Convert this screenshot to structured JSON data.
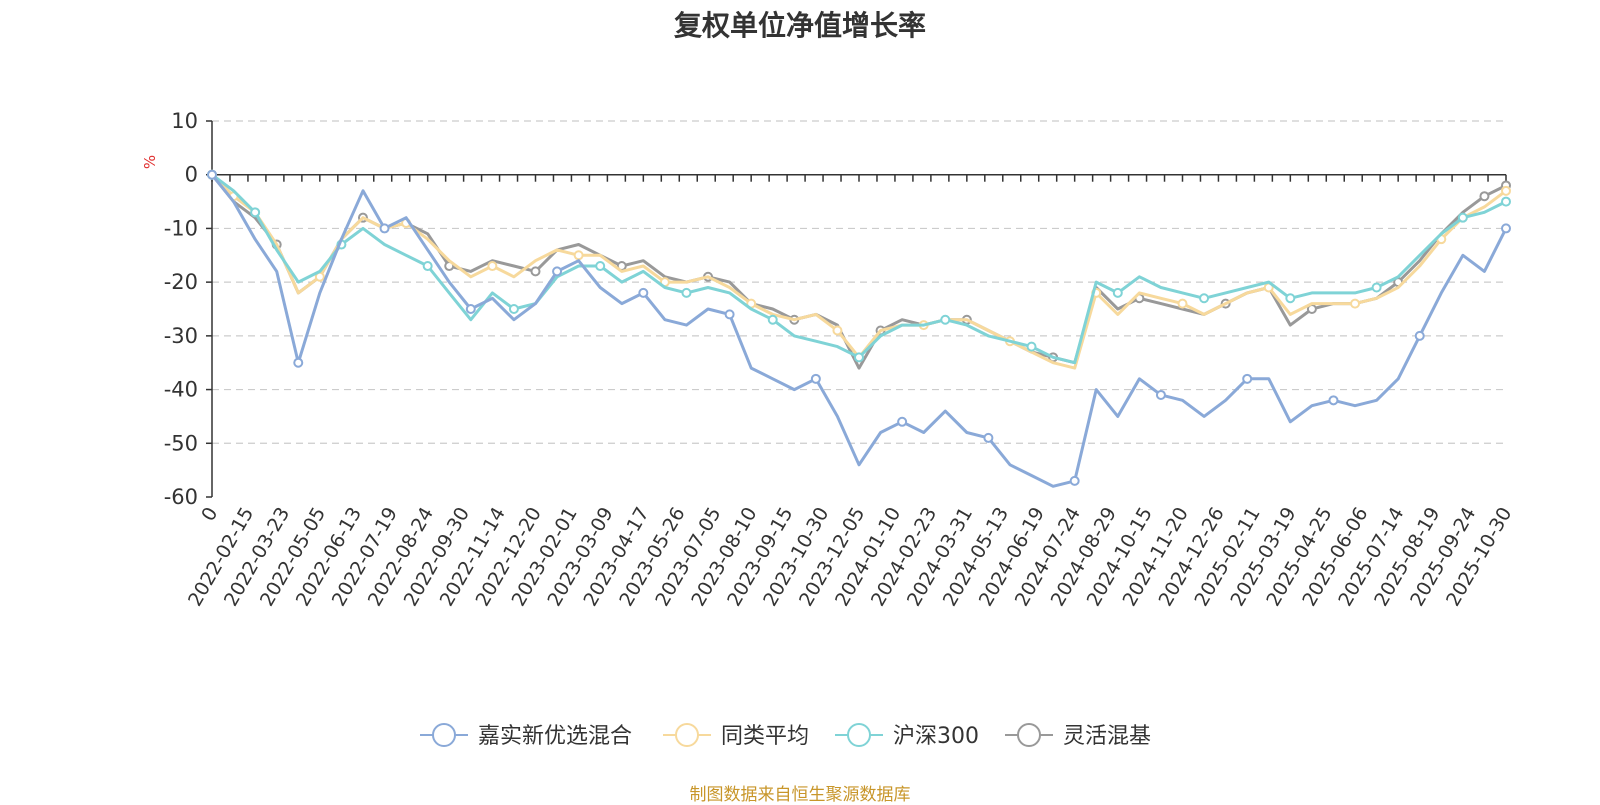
{
  "title": "复权单位净值增长率",
  "source_note": "制图数据来自恒生聚源数据库",
  "colors": {
    "series": [
      "#8aa9d8",
      "#f7d99c",
      "#7fd3d6",
      "#999999"
    ],
    "axis": "#333333",
    "grid": "#cccccc",
    "unit": "#e03030",
    "source": "#c8962a"
  },
  "chart_data": {
    "type": "line",
    "title": "复权单位净值增长率",
    "ylabel": "%",
    "ylim": [
      -60,
      10
    ],
    "yticks": [
      10,
      0,
      -10,
      -20,
      -30,
      -40,
      -50,
      -60
    ],
    "x_labels": [
      "0",
      "2022-02-15",
      "2022-03-23",
      "2022-05-05",
      "2022-06-13",
      "2022-07-19",
      "2022-08-24",
      "2022-09-30",
      "2022-11-14",
      "2022-12-20",
      "2023-02-01",
      "2023-03-09",
      "2023-04-17",
      "2023-05-26",
      "2023-07-05",
      "2023-08-10",
      "2023-09-15",
      "2023-10-30",
      "2023-12-05",
      "2024-01-10",
      "2024-02-23",
      "2024-03-31",
      "2024-05-13",
      "2024-06-19",
      "2024-07-24",
      "2024-08-29",
      "2024-10-15",
      "2024-11-20",
      "2024-12-26",
      "2025-02-11",
      "2025-03-19",
      "2025-04-25",
      "2025-06-06",
      "2025-07-14",
      "2025-08-19",
      "2025-09-24",
      "2025-10-30"
    ],
    "series": [
      {
        "name": "嘉实新优选混合",
        "values": [
          0,
          -5,
          -12,
          -18,
          -35,
          -22,
          -12,
          -3,
          -10,
          -8,
          -14,
          -20,
          -25,
          -23,
          -27,
          -24,
          -18,
          -16,
          -21,
          -24,
          -22,
          -27,
          -28,
          -25,
          -26,
          -36,
          -38,
          -40,
          -38,
          -45,
          -54,
          -48,
          -46,
          -48,
          -44,
          -48,
          -49,
          -54,
          -56,
          -58,
          -57,
          -40,
          -45,
          -38,
          -41,
          -42,
          -45,
          -42,
          -38,
          -38,
          -46,
          -43,
          -42,
          -43,
          -42,
          -38,
          -30,
          -22,
          -15,
          -18,
          -10
        ]
      },
      {
        "name": "同类平均",
        "values": [
          0,
          -4,
          -7,
          -13,
          -22,
          -19,
          -12,
          -8,
          -10,
          -9,
          -12,
          -16,
          -19,
          -17,
          -19,
          -16,
          -14,
          -15,
          -15,
          -18,
          -17,
          -20,
          -20,
          -19,
          -21,
          -24,
          -26,
          -27,
          -26,
          -29,
          -34,
          -29,
          -28,
          -28,
          -27,
          -27,
          -29,
          -31,
          -33,
          -35,
          -36,
          -22,
          -26,
          -22,
          -23,
          -24,
          -26,
          -24,
          -22,
          -21,
          -26,
          -24,
          -24,
          -24,
          -23,
          -21,
          -17,
          -12,
          -8,
          -6,
          -3
        ]
      },
      {
        "name": "沪深300",
        "values": [
          0,
          -3,
          -7,
          -14,
          -20,
          -18,
          -13,
          -10,
          -13,
          -15,
          -17,
          -22,
          -27,
          -22,
          -25,
          -24,
          -19,
          -17,
          -17,
          -20,
          -18,
          -21,
          -22,
          -21,
          -22,
          -25,
          -27,
          -30,
          -31,
          -32,
          -34,
          -30,
          -28,
          -28,
          -27,
          -28,
          -30,
          -31,
          -32,
          -34,
          -35,
          -20,
          -22,
          -19,
          -21,
          -22,
          -23,
          -22,
          -21,
          -20,
          -23,
          -22,
          -22,
          -22,
          -21,
          -19,
          -15,
          -11,
          -8,
          -7,
          -5
        ]
      },
      {
        "name": "灵活混基",
        "values": [
          0,
          -5,
          -8,
          -13,
          -22,
          -19,
          -12,
          -8,
          -10,
          -9,
          -11,
          -17,
          -18,
          -16,
          -17,
          -18,
          -14,
          -13,
          -15,
          -17,
          -16,
          -19,
          -20,
          -19,
          -20,
          -24,
          -25,
          -27,
          -26,
          -28,
          -36,
          -29,
          -27,
          -28,
          -27,
          -27,
          -29,
          -31,
          -33,
          -34,
          -35,
          -21,
          -25,
          -23,
          -24,
          -25,
          -26,
          -24,
          -22,
          -21,
          -28,
          -25,
          -24,
          -24,
          -23,
          -20,
          -16,
          -11,
          -7,
          -4,
          -2
        ]
      }
    ]
  }
}
